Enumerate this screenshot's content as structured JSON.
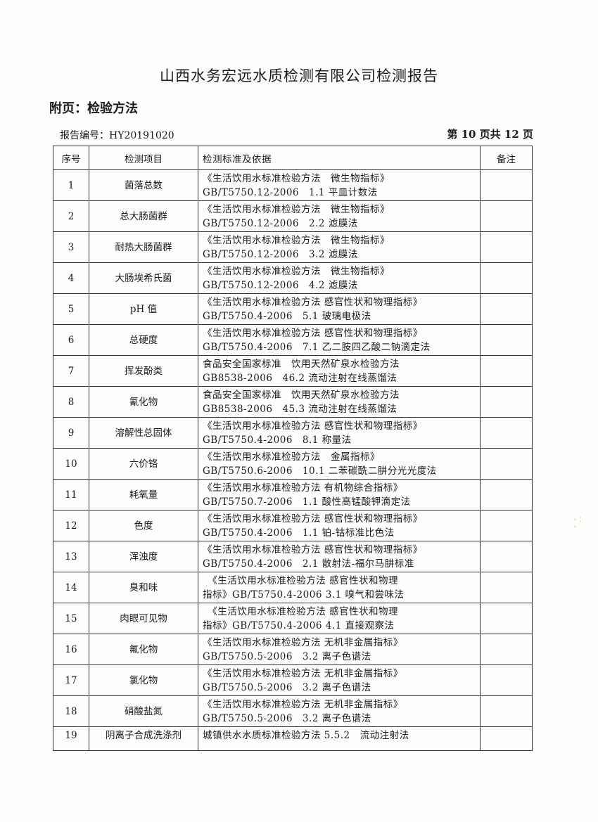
{
  "header": {
    "title": "山西水务宏远水质检测有限公司检测报告",
    "subtitle": "附页：检验方法",
    "report_no": "报告编号：HY20191020",
    "page_info": "第 10 页共 12 页"
  },
  "table": {
    "columns": [
      "序号",
      "检测项目",
      "检测标准及依据",
      "备注"
    ],
    "rows": [
      {
        "no": "1",
        "item": "菌落总数",
        "line1": "《生活饮用水标准检验方法　微生物指标》",
        "line2": "GB/T5750.12-2006　1.1 平皿计数法",
        "note": ""
      },
      {
        "no": "2",
        "item": "总大肠菌群",
        "line1": "《生活饮用水标准检验方法　微生物指标》",
        "line2": "GB/T5750.12-2006　2.2 滤膜法",
        "note": ""
      },
      {
        "no": "3",
        "item": "耐热大肠菌群",
        "line1": "《生活饮用水标准检验方法　微生物指标》",
        "line2": "GB/T5750.12-2006　3.2 滤膜法",
        "note": ""
      },
      {
        "no": "4",
        "item": "大肠埃希氏菌",
        "line1": "《生活饮用水标准检验方法　微生物指标》",
        "line2": "GB/T5750.12-2006　4.2 滤膜法",
        "note": ""
      },
      {
        "no": "5",
        "item": "pH 值",
        "line1": "《生活饮用水标准检验方法 感官性状和物理指标》",
        "line2": "GB/T5750.4-2006　5.1 玻璃电极法",
        "note": ""
      },
      {
        "no": "6",
        "item": "总硬度",
        "line1": "《生活饮用水标准检验方法 感官性状和物理指标》",
        "line2": "GB/T5750.4-2006　7.1 乙二胺四乙酸二钠滴定法",
        "note": ""
      },
      {
        "no": "7",
        "item": "挥发酚类",
        "line1": "食品安全国家标准　饮用天然矿泉水检验方法",
        "line2": "GB8538-2006　46.2 流动注射在线蒸馏法",
        "note": ""
      },
      {
        "no": "8",
        "item": "氰化物",
        "line1": "食品安全国家标准　饮用天然矿泉水检验方法",
        "line2": "GB8538-2006　45.3 流动注射在线蒸馏法",
        "note": ""
      },
      {
        "no": "9",
        "item": "溶解性总固体",
        "line1": "《生活饮用水标准检验方法 感官性状和物理指标》",
        "line2": "GB/T5750.4-2006　8.1 称量法",
        "note": ""
      },
      {
        "no": "10",
        "item": "六价铬",
        "line1": "《生活饮用水标准检验方法　金属指标》",
        "line2": "GB/T5750.6-2006　10.1 二苯碳酰二肼分光光度法",
        "note": ""
      },
      {
        "no": "11",
        "item": "耗氧量",
        "line1": "《生活饮用水标准检验方法 有机物综合指标》",
        "line2": "GB/T5750.7-2006　1.1 酸性高锰酸钾滴定法",
        "note": ""
      },
      {
        "no": "12",
        "item": "色度",
        "line1": "《生活饮用水标准检验方法 感官性状和物理指标》",
        "line2": "GB/T5750.4-2006　1.1 铂-钴标准比色法",
        "note": ""
      },
      {
        "no": "13",
        "item": "浑浊度",
        "line1": "《生活饮用水标准检验方法 感官性状和物理指标》",
        "line2": "GB/T5750.4-2006　2.1 散射法-福尔马肼标准",
        "note": ""
      },
      {
        "no": "14",
        "item": "臭和味",
        "line1": "　《生活饮用水标准检验方法 感官性状和物理",
        "line2": "指标》GB/T5750.4-2006 3.1 嗅气和尝味法",
        "note": ""
      },
      {
        "no": "15",
        "item": "肉眼可见物",
        "line1": "　《生活饮用水标准检验方法 感官性状和物理",
        "line2": "指标》GB/T5750.4-2006 4.1 直接观察法",
        "note": ""
      },
      {
        "no": "16",
        "item": "氟化物",
        "line1": "《生活饮用水标准检验方法 无机非金属指标》",
        "line2": "GB/T5750.5-2006　3.2 离子色谱法",
        "note": ""
      },
      {
        "no": "17",
        "item": "氯化物",
        "line1": "《生活饮用水标准检验方法 无机非金属指标》",
        "line2": "GB/T5750.5-2006　3.2 离子色谱法",
        "note": ""
      },
      {
        "no": "18",
        "item": "硝酸盐氮",
        "line1": "《生活饮用水标准检验方法 无机非金属指标》",
        "line2": "GB/T5750.5-2006　3.2 离子色谱法",
        "note": ""
      },
      {
        "no": "19",
        "item": "阴离子合成洗涤剂",
        "line1": "城镇供水水质标准检验方法 5.5.2　流动注射法",
        "line2": "",
        "note": ""
      }
    ]
  }
}
